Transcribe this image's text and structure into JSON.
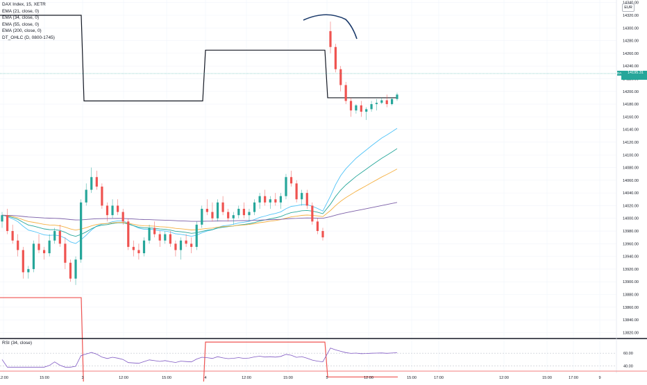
{
  "legend": {
    "symbol": "DAX Index, 15, XETR",
    "indicators": [
      "EMA (21, close, 0)",
      "EMA (34, close, 0)",
      "EMA (55, close, 0)",
      "EMA (200, close, 0)",
      "DT_OHLC (D, 0800-1745)"
    ]
  },
  "currency_label": "EUR",
  "last_price_label": "14195.31",
  "symbol_tag": "DAX",
  "rsi_legend": "RSI (34, close)",
  "colors": {
    "up": "#26a69a",
    "down": "#ef5350",
    "ohlc_high": "#131722",
    "ohlc_low": "#ef5350",
    "ema21": "#4fc3f7",
    "ema34": "#26a69a",
    "ema55": "#f5b041",
    "ema200": "#7b5ea7",
    "rsi": "#7e57c2"
  },
  "chart_data": {
    "type": "candlestick",
    "y_axis": {
      "ticks": [
        14340,
        14320,
        14300,
        14280,
        14260,
        14240,
        14220,
        14200,
        14180,
        14160,
        14140,
        14120,
        14100,
        14080,
        14060,
        14040,
        14020,
        14000,
        13980,
        13960,
        13940,
        13920,
        13900,
        13880,
        13860,
        13840,
        13820,
        13800,
        13780,
        13760,
        13740,
        13720,
        13700,
        13680,
        13660
      ],
      "range": [
        13650,
        14350
      ]
    },
    "x_axis": {
      "ticks": [
        "12:00",
        "15:00",
        "3",
        "12:00",
        "15:00",
        "4",
        "12:00",
        "15:00",
        "5",
        "12:00",
        "15:00",
        "17:00",
        "12:00",
        "15:00",
        "17:00",
        "9"
      ]
    },
    "last_price": 14195.31,
    "ohlc_daily": [
      {
        "day": "2",
        "high": 14320,
        "low": 13875
      },
      {
        "day": "3",
        "high": 14185,
        "low": 13710
      },
      {
        "day": "4",
        "high": 14265,
        "low": 13805
      },
      {
        "day": "5",
        "high": 14265,
        "low": 13805
      },
      {
        "day": "current",
        "high": 14190,
        "low": 13750
      }
    ],
    "candles": [
      [
        13995,
        14010,
        13985,
        14005
      ],
      [
        14005,
        14015,
        13975,
        13980
      ],
      [
        13980,
        13990,
        13960,
        13965
      ],
      [
        13965,
        13975,
        13940,
        13950
      ],
      [
        13950,
        13955,
        13905,
        13915
      ],
      [
        13915,
        13925,
        13905,
        13920
      ],
      [
        13920,
        13965,
        13915,
        13960
      ],
      [
        13960,
        13975,
        13945,
        13950
      ],
      [
        13950,
        13955,
        13935,
        13945
      ],
      [
        13945,
        13975,
        13940,
        13965
      ],
      [
        13965,
        13985,
        13960,
        13980
      ],
      [
        13980,
        13990,
        13955,
        13960
      ],
      [
        13960,
        13970,
        13920,
        13930
      ],
      [
        13930,
        13935,
        13900,
        13905
      ],
      [
        13905,
        13940,
        13895,
        13935
      ],
      [
        13935,
        14030,
        13930,
        14025
      ],
      [
        14025,
        14055,
        14020,
        14045
      ],
      [
        14045,
        14080,
        14040,
        14065
      ],
      [
        14065,
        14075,
        14045,
        14050
      ],
      [
        14050,
        14055,
        14015,
        14020
      ],
      [
        14020,
        14025,
        13995,
        14005
      ],
      [
        14005,
        14030,
        14000,
        14020
      ],
      [
        14020,
        14030,
        14005,
        14010
      ],
      [
        14010,
        14015,
        13990,
        13995
      ],
      [
        13995,
        14000,
        13950,
        13955
      ],
      [
        13955,
        13965,
        13940,
        13950
      ],
      [
        13950,
        13960,
        13935,
        13945
      ],
      [
        13945,
        13970,
        13940,
        13965
      ],
      [
        13965,
        13990,
        13960,
        13985
      ],
      [
        13985,
        13995,
        13970,
        13975
      ],
      [
        13975,
        13980,
        13955,
        13965
      ],
      [
        13965,
        13980,
        13960,
        13975
      ],
      [
        13975,
        13980,
        13955,
        13960
      ],
      [
        13960,
        13965,
        13940,
        13950
      ],
      [
        13950,
        13970,
        13935,
        13965
      ],
      [
        13965,
        13975,
        13955,
        13960
      ],
      [
        13960,
        13970,
        13945,
        13955
      ],
      [
        13955,
        13995,
        13950,
        13990
      ],
      [
        13990,
        14020,
        13985,
        14015
      ],
      [
        14015,
        14030,
        14005,
        14010
      ],
      [
        14010,
        14025,
        13995,
        14000
      ],
      [
        14000,
        14030,
        13995,
        14025
      ],
      [
        14025,
        14035,
        14005,
        14010
      ],
      [
        14010,
        14015,
        13995,
        14000
      ],
      [
        14000,
        14010,
        13990,
        14005
      ],
      [
        14005,
        14020,
        14000,
        14015
      ],
      [
        14015,
        14025,
        14000,
        14005
      ],
      [
        14005,
        14015,
        13995,
        14010
      ],
      [
        14010,
        14030,
        14005,
        14025
      ],
      [
        14025,
        14040,
        14015,
        14035
      ],
      [
        14035,
        14045,
        14020,
        14025
      ],
      [
        14025,
        14035,
        14015,
        14030
      ],
      [
        14030,
        14040,
        14020,
        14025
      ],
      [
        14025,
        14040,
        14015,
        14035
      ],
      [
        14035,
        14070,
        14030,
        14065
      ],
      [
        14065,
        14075,
        14050,
        14055
      ],
      [
        14055,
        14060,
        14025,
        14030
      ],
      [
        14030,
        14045,
        14020,
        14040
      ],
      [
        14040,
        14045,
        14015,
        14020
      ],
      [
        14020,
        14025,
        13990,
        13995
      ],
      [
        13995,
        14000,
        13975,
        13980
      ],
      [
        13980,
        13985,
        13965,
        13970
      ],
      [
        14295,
        14310,
        14260,
        14270
      ],
      [
        14270,
        14275,
        14230,
        14235
      ],
      [
        14235,
        14240,
        14200,
        14210
      ],
      [
        14210,
        14215,
        14180,
        14185
      ],
      [
        14185,
        14190,
        14160,
        14170
      ],
      [
        14170,
        14180,
        14165,
        14178
      ],
      [
        14178,
        14185,
        14160,
        14168
      ],
      [
        14168,
        14175,
        14155,
        14172
      ],
      [
        14172,
        14185,
        14168,
        14180
      ],
      [
        14180,
        14188,
        14170,
        14182
      ],
      [
        14182,
        14190,
        14180,
        14186
      ],
      [
        14186,
        14195,
        14175,
        14180
      ],
      [
        14180,
        14190,
        14178,
        14188
      ],
      [
        14188,
        14198,
        14185,
        14195
      ]
    ],
    "rsi": {
      "ylim": [
        35,
        70
      ],
      "ticks": [
        60,
        40
      ]
    }
  }
}
